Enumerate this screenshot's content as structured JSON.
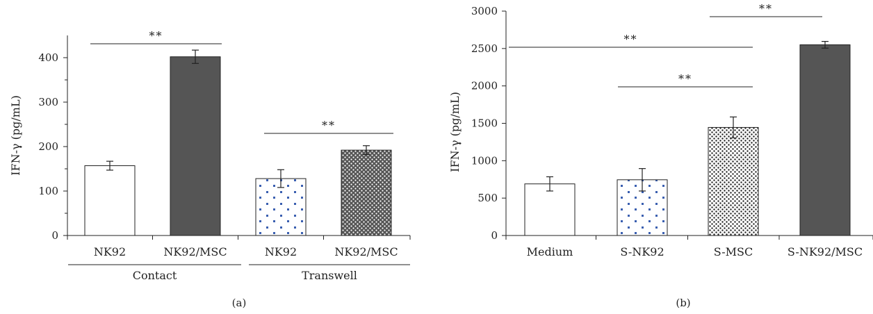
{
  "chart_data": [
    {
      "type": "bar",
      "panel_label": "(a)",
      "ylabel": "IFN-γ (pg/mL)",
      "ylim": [
        0,
        450
      ],
      "yticks": [
        0,
        100,
        200,
        300,
        400
      ],
      "yticks_minor": [
        50,
        150,
        250,
        350
      ],
      "categories": [
        "NK92",
        "NK92/MSC",
        "NK92",
        "NK92/MSC"
      ],
      "groups": [
        {
          "label": "Contact",
          "categories": [
            0,
            1
          ]
        },
        {
          "label": "Transwell",
          "categories": [
            2,
            3
          ]
        }
      ],
      "values": [
        157,
        402,
        128,
        192
      ],
      "errors": [
        10,
        15,
        20,
        10
      ],
      "fills": [
        "white",
        "#555555",
        "blue-sparse-dots",
        "dense-dots-dark"
      ],
      "significance": [
        {
          "from": 0,
          "to": 1,
          "label": "**"
        },
        {
          "from": 2,
          "to": 3,
          "label": "**"
        }
      ]
    },
    {
      "type": "bar",
      "panel_label": "(b)",
      "ylabel": "IFN-γ (pg/mL)",
      "ylim": [
        0,
        3000
      ],
      "yticks": [
        0,
        500,
        1000,
        1500,
        2000,
        2500,
        3000
      ],
      "categories": [
        "Medium",
        "S-NK92",
        "S-MSC",
        "S-NK92/MSC"
      ],
      "values": [
        690,
        745,
        1445,
        2550
      ],
      "errors": [
        95,
        150,
        140,
        45
      ],
      "fills": [
        "white",
        "blue-sparse-dots",
        "dense-dots-black",
        "#555555"
      ],
      "significance": [
        {
          "from": 2,
          "to": 3,
          "label": "**"
        },
        {
          "from": 0,
          "to": 2,
          "label": "**"
        },
        {
          "from": 1,
          "to": 2,
          "label": "**"
        }
      ]
    }
  ]
}
